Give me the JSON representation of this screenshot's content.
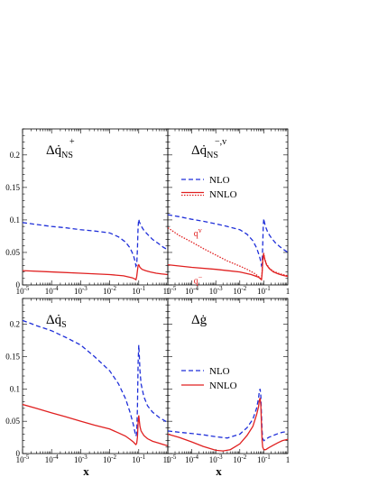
{
  "chart_data": [
    {
      "id": "p1",
      "type": "line",
      "title": "Δq̇",
      "title_sup": "+",
      "title_sub": "NS",
      "xscale": "log",
      "xlim": [
        1e-05,
        1
      ],
      "ylim": [
        0,
        0.24
      ],
      "xlabel": "",
      "ylabel": "",
      "x_ticks": [
        {
          "v": 1e-05,
          "e": "-5"
        },
        {
          "v": 0.0001,
          "e": "-4"
        },
        {
          "v": 0.001,
          "e": "-3"
        },
        {
          "v": 0.01,
          "e": "-2"
        },
        {
          "v": 0.1,
          "e": "-1"
        },
        {
          "v": 1,
          "e": ""
        }
      ],
      "y_ticks": [
        {
          "v": 0,
          "label": "0"
        },
        {
          "v": 0.05,
          "label": "0.05"
        },
        {
          "v": 0.1,
          "label": "0.1"
        },
        {
          "v": 0.15,
          "label": "0.15"
        },
        {
          "v": 0.2,
          "label": "0.2"
        }
      ],
      "x_tick_labels": false,
      "legend": null,
      "annotations": [],
      "series": [
        {
          "name": "NLO",
          "color": "#1f2fd9",
          "dash": "dashed",
          "x": [
            1e-05,
            3e-05,
            0.0001,
            0.0003,
            0.001,
            0.003,
            0.01,
            0.02,
            0.035,
            0.05,
            0.065,
            0.075,
            0.08,
            0.085,
            0.09,
            0.095,
            0.1,
            0.105,
            0.11,
            0.12,
            0.15,
            0.2,
            0.3,
            0.5,
            0.7,
            1
          ],
          "y": [
            0.096,
            0.093,
            0.09,
            0.088,
            0.085,
            0.083,
            0.08,
            0.074,
            0.066,
            0.057,
            0.046,
            0.036,
            0.029,
            0.031,
            0.055,
            0.09,
            0.101,
            0.097,
            0.095,
            0.091,
            0.084,
            0.078,
            0.07,
            0.063,
            0.058,
            0.054
          ]
        },
        {
          "name": "NNLO",
          "color": "#e02020",
          "dash": "solid",
          "x": [
            1e-05,
            0.0001,
            0.001,
            0.01,
            0.03,
            0.06,
            0.075,
            0.08,
            0.085,
            0.09,
            0.095,
            0.1,
            0.11,
            0.13,
            0.17,
            0.25,
            0.4,
            0.6,
            1
          ],
          "y": [
            0.022,
            0.02,
            0.018,
            0.016,
            0.014,
            0.011,
            0.009,
            0.008,
            0.013,
            0.022,
            0.03,
            0.031,
            0.027,
            0.024,
            0.022,
            0.02,
            0.018,
            0.017,
            0.016
          ]
        }
      ]
    },
    {
      "id": "p2",
      "type": "line",
      "title": "Δq̇",
      "title_sup": "−,v",
      "title_sub": "NS",
      "xscale": "log",
      "xlim": [
        1e-05,
        1
      ],
      "ylim": [
        0,
        0.24
      ],
      "xlabel": "",
      "ylabel": "",
      "x_ticks": [
        {
          "v": 1e-05,
          "e": "-5"
        },
        {
          "v": 0.0001,
          "e": "-4"
        },
        {
          "v": 0.001,
          "e": "-3"
        },
        {
          "v": 0.01,
          "e": "-2"
        },
        {
          "v": 0.1,
          "e": "-1"
        },
        {
          "v": 1,
          "e": ""
        }
      ],
      "y_ticks": [
        {
          "v": 0,
          "label": ""
        },
        {
          "v": 0.05,
          "label": "0.05"
        },
        {
          "v": 0.1,
          "label": "0.1"
        },
        {
          "v": 0.15,
          "label": "0.15"
        },
        {
          "v": 0.2,
          "label": "0.2"
        }
      ],
      "x_tick_labels": true,
      "legend": {
        "placement": "upper-left",
        "entries": [
          {
            "label": "NLO",
            "color": "#1f2fd9",
            "style": "dashed"
          },
          {
            "label": "NNLO",
            "color": "#e02020",
            "style": "double"
          }
        ]
      },
      "annotations": [
        {
          "text": "q",
          "sup": "v",
          "color": "#e02020",
          "x": 0.00012,
          "y": 0.075
        },
        {
          "text": "q",
          "sup": "−",
          "color": "#e02020",
          "x": 0.00012,
          "y": 0.002
        }
      ],
      "series": [
        {
          "name": "NLO",
          "color": "#1f2fd9",
          "dash": "dashed",
          "x": [
            1e-05,
            3e-05,
            0.0001,
            0.0003,
            0.001,
            0.003,
            0.01,
            0.02,
            0.035,
            0.05,
            0.065,
            0.075,
            0.08,
            0.085,
            0.09,
            0.095,
            0.1,
            0.105,
            0.11,
            0.12,
            0.15,
            0.2,
            0.3,
            0.5,
            0.7,
            1
          ],
          "y": [
            0.108,
            0.105,
            0.101,
            0.098,
            0.094,
            0.09,
            0.085,
            0.078,
            0.068,
            0.057,
            0.045,
            0.036,
            0.03,
            0.032,
            0.06,
            0.092,
            0.102,
            0.097,
            0.094,
            0.089,
            0.08,
            0.073,
            0.065,
            0.058,
            0.054,
            0.05
          ]
        },
        {
          "name": "NNLO q−",
          "color": "#e02020",
          "dash": "solid",
          "x": [
            1e-05,
            0.0001,
            0.001,
            0.01,
            0.03,
            0.06,
            0.075,
            0.08,
            0.085,
            0.09,
            0.095,
            0.1,
            0.11,
            0.13,
            0.17,
            0.25,
            0.4,
            0.6,
            1
          ],
          "y": [
            0.031,
            0.027,
            0.024,
            0.02,
            0.016,
            0.012,
            0.009,
            0.008,
            0.018,
            0.036,
            0.045,
            0.046,
            0.039,
            0.031,
            0.025,
            0.02,
            0.017,
            0.015,
            0.013
          ]
        },
        {
          "name": "NNLO qv",
          "color": "#e02020",
          "dash": "dotted",
          "x": [
            1e-05,
            3e-05,
            0.0001,
            0.0003,
            0.001,
            0.003,
            0.01,
            0.02,
            0.04,
            0.06,
            0.075,
            0.08,
            0.085,
            0.09,
            0.095,
            0.1,
            0.11,
            0.13,
            0.17,
            0.25,
            0.4,
            0.6,
            1
          ],
          "y": [
            0.088,
            0.076,
            0.066,
            0.056,
            0.046,
            0.037,
            0.029,
            0.024,
            0.018,
            0.013,
            0.009,
            0.008,
            0.02,
            0.038,
            0.047,
            0.048,
            0.04,
            0.032,
            0.026,
            0.021,
            0.018,
            0.016,
            0.014
          ]
        }
      ]
    },
    {
      "id": "p3",
      "type": "line",
      "title": "Δq̇",
      "title_sup": "",
      "title_sub": "S",
      "xscale": "log",
      "xlim": [
        1e-05,
        1
      ],
      "ylim": [
        0,
        0.24
      ],
      "xlabel": "x",
      "ylabel": "",
      "x_ticks": [
        {
          "v": 1e-05,
          "e": "-5"
        },
        {
          "v": 0.0001,
          "e": "-4"
        },
        {
          "v": 0.001,
          "e": "-3"
        },
        {
          "v": 0.01,
          "e": "-2"
        },
        {
          "v": 0.1,
          "e": "-1"
        },
        {
          "v": 1,
          "e": ""
        }
      ],
      "y_ticks": [
        {
          "v": 0,
          "label": "0"
        },
        {
          "v": 0.05,
          "label": "0.05"
        },
        {
          "v": 0.1,
          "label": "0.1"
        },
        {
          "v": 0.15,
          "label": "0.15"
        },
        {
          "v": 0.2,
          "label": "0.2"
        }
      ],
      "x_tick_labels": true,
      "legend": null,
      "annotations": [],
      "series": [
        {
          "name": "NLO",
          "color": "#1f2fd9",
          "dash": "dashed",
          "x": [
            1e-05,
            3e-05,
            0.0001,
            0.0003,
            0.001,
            0.003,
            0.01,
            0.02,
            0.035,
            0.05,
            0.065,
            0.075,
            0.08,
            0.085,
            0.09,
            0.095,
            0.1,
            0.105,
            0.11,
            0.12,
            0.15,
            0.2,
            0.3,
            0.5,
            0.7,
            1
          ],
          "y": [
            0.206,
            0.198,
            0.19,
            0.18,
            0.168,
            0.15,
            0.128,
            0.108,
            0.085,
            0.064,
            0.045,
            0.032,
            0.027,
            0.032,
            0.07,
            0.14,
            0.168,
            0.15,
            0.128,
            0.108,
            0.088,
            0.074,
            0.064,
            0.056,
            0.052,
            0.048
          ]
        },
        {
          "name": "NNLO",
          "color": "#e02020",
          "dash": "solid",
          "x": [
            1e-05,
            3e-05,
            0.0001,
            0.0003,
            0.001,
            0.003,
            0.01,
            0.02,
            0.035,
            0.05,
            0.065,
            0.075,
            0.08,
            0.085,
            0.09,
            0.095,
            0.1,
            0.105,
            0.11,
            0.12,
            0.15,
            0.2,
            0.3,
            0.5,
            0.7,
            1
          ],
          "y": [
            0.076,
            0.07,
            0.063,
            0.057,
            0.05,
            0.044,
            0.038,
            0.032,
            0.027,
            0.022,
            0.018,
            0.015,
            0.014,
            0.016,
            0.025,
            0.048,
            0.059,
            0.05,
            0.042,
            0.035,
            0.028,
            0.023,
            0.019,
            0.016,
            0.014,
            0.012
          ]
        }
      ]
    },
    {
      "id": "p4",
      "type": "line",
      "title": "Δġ",
      "title_sup": "",
      "title_sub": "",
      "xscale": "log",
      "xlim": [
        1e-05,
        1
      ],
      "ylim": [
        0,
        0.24
      ],
      "xlabel": "x",
      "ylabel": "",
      "x_ticks": [
        {
          "v": 1e-05,
          "e": "-5"
        },
        {
          "v": 0.0001,
          "e": "-4"
        },
        {
          "v": 0.001,
          "e": "-3"
        },
        {
          "v": 0.01,
          "e": "-2"
        },
        {
          "v": 0.1,
          "e": "-1"
        },
        {
          "v": 1,
          "e": ""
        }
      ],
      "y_ticks": [
        {
          "v": 0,
          "label": ""
        },
        {
          "v": 0.05,
          "label": "0.05"
        },
        {
          "v": 0.1,
          "label": "0.1"
        },
        {
          "v": 0.15,
          "label": "0.15"
        },
        {
          "v": 0.2,
          "label": "0.2"
        }
      ],
      "x_tick_labels": true,
      "legend": {
        "placement": "center-left",
        "entries": [
          {
            "label": "NLO",
            "color": "#1f2fd9",
            "style": "dashed"
          },
          {
            "label": "NNLO",
            "color": "#e02020",
            "style": "solid"
          }
        ]
      },
      "annotations": [],
      "series": [
        {
          "name": "NLO",
          "color": "#1f2fd9",
          "dash": "dashed",
          "x": [
            1e-05,
            3e-05,
            0.0001,
            0.0003,
            0.001,
            0.003,
            0.01,
            0.02,
            0.035,
            0.05,
            0.06,
            0.065,
            0.07,
            0.075,
            0.08,
            0.085,
            0.09,
            0.1,
            0.12,
            0.16,
            0.25,
            0.4,
            0.6,
            1
          ],
          "y": [
            0.035,
            0.033,
            0.031,
            0.029,
            0.026,
            0.024,
            0.03,
            0.04,
            0.053,
            0.07,
            0.085,
            0.096,
            0.1,
            0.09,
            0.06,
            0.035,
            0.023,
            0.02,
            0.022,
            0.025,
            0.028,
            0.031,
            0.033,
            0.034
          ]
        },
        {
          "name": "NNLO",
          "color": "#e02020",
          "dash": "solid",
          "x": [
            1e-05,
            3e-05,
            0.0001,
            0.0003,
            0.001,
            0.002,
            0.004,
            0.01,
            0.02,
            0.035,
            0.05,
            0.06,
            0.065,
            0.07,
            0.075,
            0.08,
            0.085,
            0.09,
            0.1,
            0.12,
            0.16,
            0.25,
            0.4,
            0.6,
            1
          ],
          "y": [
            0.03,
            0.025,
            0.018,
            0.011,
            0.005,
            0.004,
            0.006,
            0.015,
            0.028,
            0.042,
            0.06,
            0.072,
            0.082,
            0.086,
            0.075,
            0.045,
            0.02,
            0.01,
            0.006,
            0.006,
            0.009,
            0.013,
            0.017,
            0.02,
            0.022
          ]
        }
      ]
    }
  ]
}
